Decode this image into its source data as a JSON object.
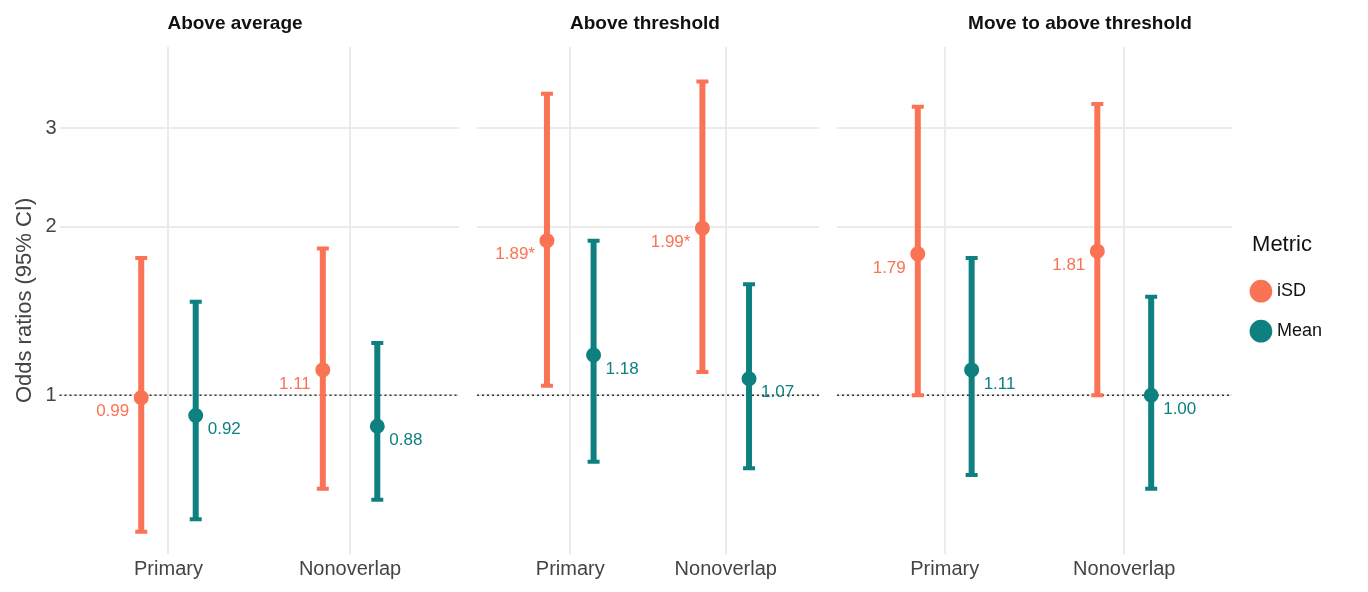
{
  "chart_data": [
    {
      "type": "scatter",
      "title": "Above average",
      "ylabel": "Odds ratios (95% CI)",
      "categories": [
        "Primary",
        "Nonoverlap"
      ],
      "log": true,
      "ylim": [
        0.52,
        4.2
      ],
      "yticks": [
        1,
        2,
        3
      ],
      "grid": true,
      "marker": "circle",
      "legend": false,
      "ref_lines": [
        {
          "axis": "y",
          "value": 1,
          "line_style": "dotted",
          "color": "#333333"
        }
      ],
      "series": [
        {
          "color": "#fa7355",
          "values": [
            0.99,
            1.11
          ],
          "errors": [
            [
              0.57,
              1.76
            ],
            [
              0.68,
              1.83
            ]
          ],
          "value_labels": [
            "0.99",
            "1.11"
          ]
        },
        {
          "color": "#0f8080",
          "values": [
            0.92,
            0.88
          ],
          "errors": [
            [
              0.6,
              1.47
            ],
            [
              0.65,
              1.24
            ]
          ],
          "value_labels": [
            "0.92",
            "0.88"
          ]
        }
      ]
    },
    {
      "type": "scatter",
      "title": "Above threshold",
      "categories": [
        "Primary",
        "Nonoverlap"
      ],
      "log": true,
      "ylim": [
        0.52,
        4.2
      ],
      "yticks": [
        1,
        2,
        3
      ],
      "grid": true,
      "marker": "circle",
      "legend": false,
      "tick_labels": "x",
      "ref_lines": [
        {
          "axis": "y",
          "value": 1,
          "line_style": "dotted",
          "color": "#333333"
        }
      ],
      "series": [
        {
          "color": "#fa7355",
          "values": [
            1.89,
            1.99
          ],
          "errors": [
            [
              1.04,
              3.46
            ],
            [
              1.1,
              3.64
            ]
          ],
          "value_labels": [
            "1.89*",
            "1.99*"
          ]
        },
        {
          "color": "#0f8080",
          "values": [
            1.18,
            1.07
          ],
          "errors": [
            [
              0.76,
              1.89
            ],
            [
              0.74,
              1.58
            ]
          ],
          "value_labels": [
            "1.18",
            "1.07"
          ]
        }
      ]
    },
    {
      "type": "scatter",
      "title": "Move to above threshold",
      "categories": [
        "Primary",
        "Nonoverlap"
      ],
      "log": true,
      "ylim": [
        0.52,
        4.2
      ],
      "yticks": [
        1,
        2,
        3
      ],
      "grid": true,
      "marker": "circle",
      "legend": "right",
      "legend_title": "Metric",
      "tick_labels": "x",
      "ref_lines": [
        {
          "axis": "y",
          "value": 1,
          "line_style": "dotted",
          "color": "#333333"
        }
      ],
      "series": [
        {
          "name": "iSD",
          "color": "#fa7355",
          "values": [
            1.79,
            1.81
          ],
          "errors": [
            [
              1.0,
              3.28
            ],
            [
              1.0,
              3.32
            ]
          ],
          "value_labels": [
            "1.79",
            "1.81"
          ]
        },
        {
          "name": "Mean",
          "color": "#0f8080",
          "values": [
            1.11,
            1.0
          ],
          "errors": [
            [
              0.72,
              1.76
            ],
            [
              0.68,
              1.5
            ]
          ],
          "value_labels": [
            "1.11",
            "1.00"
          ]
        }
      ]
    }
  ]
}
